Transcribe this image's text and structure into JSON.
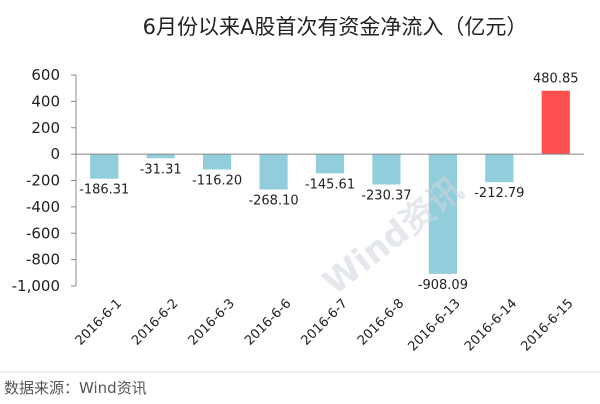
{
  "chart_data": {
    "type": "bar",
    "title": "6月份以来A股首次有资金净流入（亿元）",
    "categories": [
      "2016-6-1",
      "2016-6-2",
      "2016-6-3",
      "2016-6-6",
      "2016-6-7",
      "2016-6-8",
      "2016-6-13",
      "2016-6-14",
      "2016-6-15"
    ],
    "values": [
      -186.31,
      -31.31,
      -116.2,
      -268.1,
      -145.61,
      -230.37,
      -908.09,
      -212.79,
      480.85
    ],
    "value_labels": [
      "-186.31",
      "-31.31",
      "-116.20",
      "-268.10",
      "-145.61",
      "-230.37",
      "-908.09",
      "-212.79",
      "480.85"
    ],
    "ylim": [
      -1000,
      600
    ],
    "yticks": [
      600,
      400,
      200,
      0,
      -200,
      -400,
      -600,
      -800,
      -1000
    ],
    "ytick_labels": [
      "600",
      "400",
      "200",
      "0",
      "-200",
      "-400",
      "-600",
      "-800",
      "-1,000"
    ],
    "xlabel": "",
    "ylabel": "",
    "grid": false,
    "colors": {
      "negative": "#92cddc",
      "positive": "#ff5050"
    }
  },
  "watermark": "Wind资讯",
  "source_note": "数据来源：Wind资讯"
}
